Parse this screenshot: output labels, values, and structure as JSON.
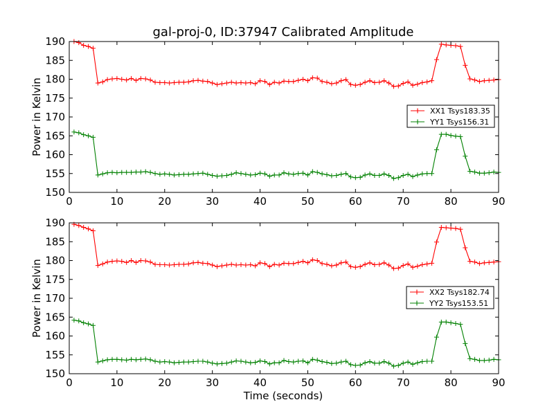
{
  "figure": {
    "title": "gal-proj-0, ID:37947 Calibrated Amplitude",
    "xlabel": "Time (seconds)"
  },
  "chart_data": [
    {
      "type": "line",
      "ylabel": "Power in Kelvin",
      "xlim": [
        0,
        90
      ],
      "ylim": [
        150,
        190
      ],
      "xticks": [
        0,
        10,
        20,
        30,
        40,
        50,
        60,
        70,
        80,
        90
      ],
      "yticks": [
        150,
        155,
        160,
        165,
        170,
        175,
        180,
        185,
        190
      ],
      "grid": false,
      "legend_position": "right",
      "series": [
        {
          "name": "XX1 Tsys183.35",
          "color": "#ff0000",
          "x": [
            1,
            2,
            3,
            4,
            5,
            6,
            7,
            8,
            9,
            10,
            11,
            12,
            13,
            14,
            15,
            16,
            17,
            18,
            19,
            20,
            21,
            22,
            23,
            24,
            25,
            26,
            27,
            28,
            29,
            30,
            31,
            32,
            33,
            34,
            35,
            36,
            37,
            38,
            39,
            40,
            41,
            42,
            43,
            44,
            45,
            46,
            47,
            48,
            49,
            50,
            51,
            52,
            53,
            54,
            55,
            56,
            57,
            58,
            59,
            60,
            61,
            62,
            63,
            64,
            65,
            66,
            67,
            68,
            69,
            70,
            71,
            72,
            73,
            74,
            75,
            76,
            77,
            78,
            79,
            80,
            81,
            82,
            83,
            84,
            85,
            86,
            87,
            88,
            89,
            90
          ],
          "y": [
            190.0,
            189.7,
            189.0,
            188.7,
            188.2,
            179.0,
            179.3,
            179.9,
            180.1,
            180.2,
            180.0,
            179.8,
            180.2,
            179.7,
            180.2,
            180.1,
            179.8,
            179.2,
            179.1,
            179.1,
            179.0,
            179.1,
            179.2,
            179.2,
            179.3,
            179.6,
            179.7,
            179.5,
            179.4,
            179.0,
            178.6,
            178.8,
            179.0,
            179.2,
            179.0,
            179.1,
            179.0,
            179.1,
            178.8,
            179.6,
            179.4,
            178.6,
            179.2,
            179.0,
            179.5,
            179.4,
            179.4,
            179.7,
            180.0,
            179.6,
            180.4,
            180.3,
            179.4,
            179.2,
            178.8,
            179.0,
            179.6,
            179.9,
            178.6,
            178.4,
            178.6,
            179.2,
            179.6,
            179.1,
            179.2,
            179.6,
            179.0,
            178.1,
            178.2,
            178.9,
            179.3,
            178.4,
            178.7,
            179.1,
            179.3,
            179.6,
            185.2,
            189.3,
            189.1,
            189.0,
            188.9,
            188.7,
            183.7,
            180.1,
            179.8,
            179.4,
            179.6,
            179.7,
            179.8,
            179.9
          ]
        },
        {
          "name": "YY1 Tsys156.31",
          "color": "#008000",
          "x": [
            1,
            2,
            3,
            4,
            5,
            6,
            7,
            8,
            9,
            10,
            11,
            12,
            13,
            14,
            15,
            16,
            17,
            18,
            19,
            20,
            21,
            22,
            23,
            24,
            25,
            26,
            27,
            28,
            29,
            30,
            31,
            32,
            33,
            34,
            35,
            36,
            37,
            38,
            39,
            40,
            41,
            42,
            43,
            44,
            45,
            46,
            47,
            48,
            49,
            50,
            51,
            52,
            53,
            54,
            55,
            56,
            57,
            58,
            59,
            60,
            61,
            62,
            63,
            64,
            65,
            66,
            67,
            68,
            69,
            70,
            71,
            72,
            73,
            74,
            75,
            76,
            77,
            78,
            79,
            80,
            81,
            82,
            83,
            84,
            85,
            86,
            87,
            88,
            89,
            90
          ],
          "y": [
            166.0,
            165.8,
            165.3,
            165.0,
            164.6,
            154.6,
            154.9,
            155.2,
            155.3,
            155.2,
            155.3,
            155.3,
            155.3,
            155.4,
            155.4,
            155.5,
            155.3,
            155.0,
            154.8,
            154.9,
            154.8,
            154.6,
            154.7,
            154.8,
            154.8,
            154.9,
            155.0,
            155.1,
            154.8,
            154.5,
            154.3,
            154.4,
            154.5,
            154.8,
            155.2,
            155.0,
            154.8,
            154.6,
            154.7,
            155.1,
            154.9,
            154.3,
            154.6,
            154.6,
            155.2,
            154.9,
            154.8,
            155.0,
            155.1,
            154.6,
            155.5,
            155.3,
            154.9,
            154.7,
            154.4,
            154.5,
            154.8,
            155.0,
            154.1,
            153.9,
            154.0,
            154.6,
            154.9,
            154.5,
            154.5,
            154.9,
            154.5,
            153.7,
            153.9,
            154.5,
            154.8,
            154.2,
            154.6,
            154.9,
            155.0,
            155.0,
            161.3,
            165.4,
            165.4,
            165.1,
            164.9,
            164.8,
            159.6,
            155.6,
            155.4,
            155.1,
            155.1,
            155.2,
            155.4,
            155.3
          ]
        }
      ]
    },
    {
      "type": "line",
      "ylabel": "Power in Kelvin",
      "xlim": [
        0,
        90
      ],
      "ylim": [
        150,
        190
      ],
      "xticks": [
        0,
        10,
        20,
        30,
        40,
        50,
        60,
        70,
        80,
        90
      ],
      "yticks": [
        150,
        155,
        160,
        165,
        170,
        175,
        180,
        185,
        190
      ],
      "grid": false,
      "legend_position": "right",
      "series": [
        {
          "name": "XX2 Tsys182.74",
          "color": "#ff0000",
          "x": [
            1,
            2,
            3,
            4,
            5,
            6,
            7,
            8,
            9,
            10,
            11,
            12,
            13,
            14,
            15,
            16,
            17,
            18,
            19,
            20,
            21,
            22,
            23,
            24,
            25,
            26,
            27,
            28,
            29,
            30,
            31,
            32,
            33,
            34,
            35,
            36,
            37,
            38,
            39,
            40,
            41,
            42,
            43,
            44,
            45,
            46,
            47,
            48,
            49,
            50,
            51,
            52,
            53,
            54,
            55,
            56,
            57,
            58,
            59,
            60,
            61,
            62,
            63,
            64,
            65,
            66,
            67,
            68,
            69,
            70,
            71,
            72,
            73,
            74,
            75,
            76,
            77,
            78,
            79,
            80,
            81,
            82,
            83,
            84,
            85,
            86,
            87,
            88,
            89,
            90
          ],
          "y": [
            189.6,
            189.3,
            188.8,
            188.4,
            187.9,
            178.7,
            179.1,
            179.6,
            179.8,
            179.9,
            179.8,
            179.5,
            180.0,
            179.5,
            180.0,
            179.9,
            179.6,
            179.0,
            178.9,
            178.9,
            178.8,
            178.9,
            179.0,
            179.0,
            179.1,
            179.4,
            179.5,
            179.3,
            179.2,
            178.8,
            178.4,
            178.6,
            178.8,
            179.0,
            178.8,
            178.9,
            178.8,
            178.9,
            178.6,
            179.4,
            179.2,
            178.4,
            179.0,
            178.8,
            179.3,
            179.2,
            179.2,
            179.5,
            179.8,
            179.4,
            180.2,
            180.0,
            179.2,
            179.0,
            178.6,
            178.8,
            179.4,
            179.6,
            178.4,
            178.2,
            178.4,
            179.0,
            179.4,
            178.9,
            179.0,
            179.4,
            178.8,
            177.9,
            178.0,
            178.7,
            179.1,
            178.2,
            178.5,
            178.9,
            179.1,
            179.3,
            184.9,
            188.8,
            188.7,
            188.6,
            188.5,
            188.3,
            183.4,
            179.8,
            179.6,
            179.2,
            179.4,
            179.5,
            179.6,
            179.7
          ]
        },
        {
          "name": "YY2 Tsys153.51",
          "color": "#008000",
          "x": [
            1,
            2,
            3,
            4,
            5,
            6,
            7,
            8,
            9,
            10,
            11,
            12,
            13,
            14,
            15,
            16,
            17,
            18,
            19,
            20,
            21,
            22,
            23,
            24,
            25,
            26,
            27,
            28,
            29,
            30,
            31,
            32,
            33,
            34,
            35,
            36,
            37,
            38,
            39,
            40,
            41,
            42,
            43,
            44,
            45,
            46,
            47,
            48,
            49,
            50,
            51,
            52,
            53,
            54,
            55,
            56,
            57,
            58,
            59,
            60,
            61,
            62,
            63,
            64,
            65,
            66,
            67,
            68,
            69,
            70,
            71,
            72,
            73,
            74,
            75,
            76,
            77,
            78,
            79,
            80,
            81,
            82,
            83,
            84,
            85,
            86,
            87,
            88,
            89,
            90
          ],
          "y": [
            164.2,
            164.0,
            163.5,
            163.2,
            162.8,
            153.1,
            153.4,
            153.7,
            153.8,
            153.8,
            153.7,
            153.6,
            153.8,
            153.7,
            153.8,
            153.9,
            153.7,
            153.3,
            153.1,
            153.2,
            153.1,
            152.9,
            153.0,
            153.1,
            153.1,
            153.2,
            153.3,
            153.3,
            153.1,
            152.8,
            152.6,
            152.7,
            152.8,
            153.1,
            153.4,
            153.3,
            153.1,
            152.9,
            153.0,
            153.4,
            153.2,
            152.6,
            152.9,
            152.9,
            153.5,
            153.2,
            153.1,
            153.3,
            153.4,
            152.9,
            153.8,
            153.6,
            153.2,
            153.0,
            152.7,
            152.8,
            153.1,
            153.3,
            152.4,
            152.2,
            152.3,
            152.9,
            153.2,
            152.8,
            152.8,
            153.2,
            152.8,
            152.0,
            152.2,
            152.8,
            153.1,
            152.5,
            152.9,
            153.2,
            153.3,
            153.3,
            159.7,
            163.7,
            163.7,
            163.5,
            163.3,
            163.1,
            158.0,
            154.0,
            153.8,
            153.5,
            153.5,
            153.6,
            153.8,
            153.7
          ]
        }
      ]
    }
  ]
}
